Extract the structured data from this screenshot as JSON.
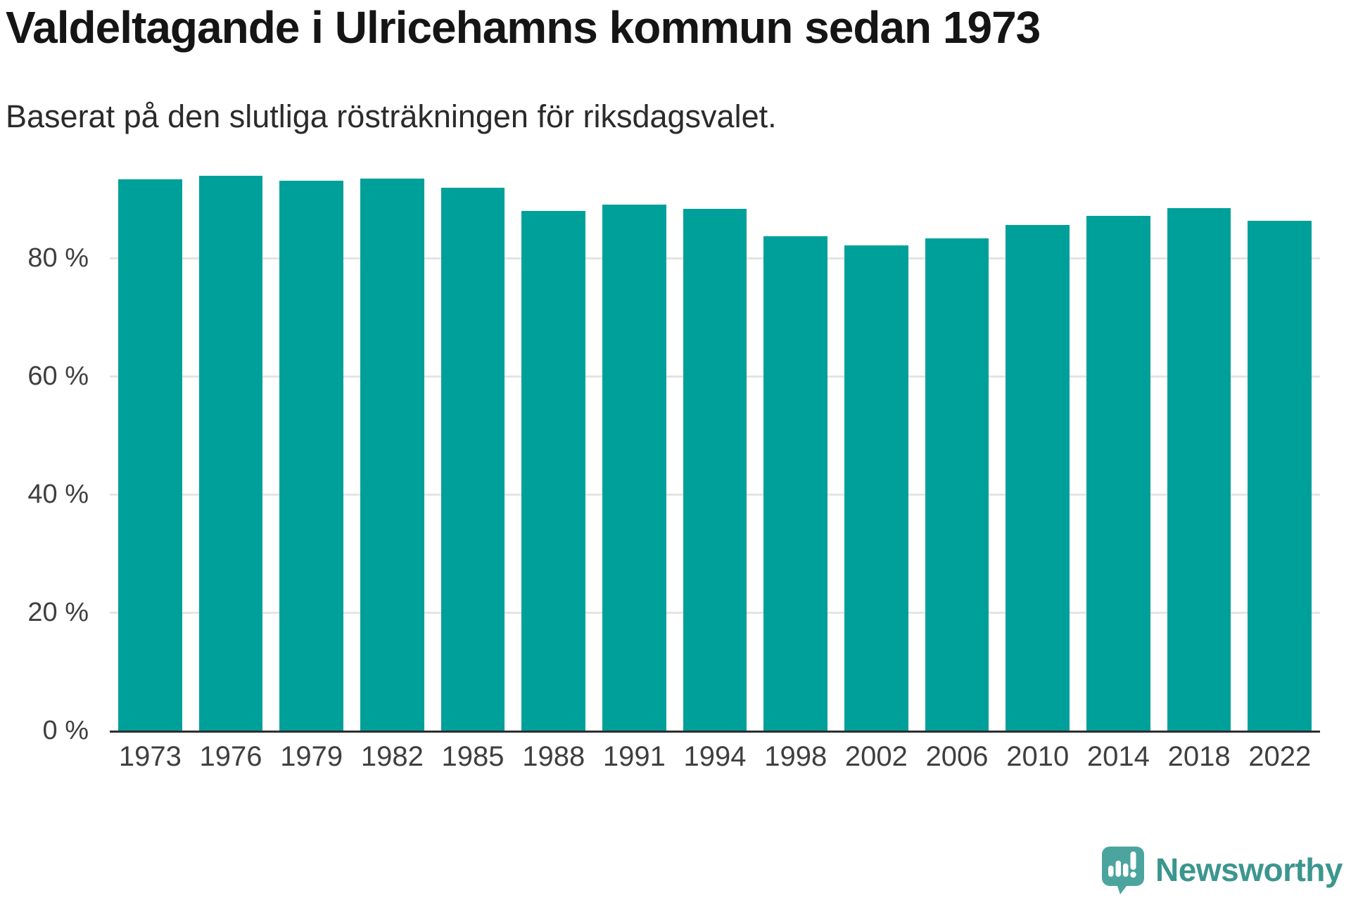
{
  "title": "Valdeltagande i Ulricehamns kommun sedan 1973",
  "subtitle": "Baserat på den slutliga rösträkningen för riksdagsvalet.",
  "branding": {
    "logo_text": "Newsworthy"
  },
  "colors": {
    "background": "#ffffff",
    "bar": "#00a09a",
    "title_text": "#151515",
    "subtitle_text": "#2b2b2b",
    "axis_text": "#3f3f3f",
    "gridline": "#e4e4e4",
    "axis_line": "#2e2e2e",
    "logo_mark": "#4ba59e",
    "logo_text": "#3b968f"
  },
  "chart_data": {
    "type": "bar",
    "title": "Valdeltagande i Ulricehamns kommun sedan 1973",
    "subtitle": "Baserat på den slutliga rösträkningen för riksdagsvalet.",
    "categories": [
      "1973",
      "1976",
      "1979",
      "1982",
      "1985",
      "1988",
      "1991",
      "1994",
      "1998",
      "2002",
      "2006",
      "2010",
      "2014",
      "2018",
      "2022"
    ],
    "values": [
      93.3,
      93.9,
      93.1,
      93.4,
      91.9,
      88.0,
      89.1,
      88.3,
      83.7,
      82.2,
      83.3,
      85.6,
      87.2,
      88.4,
      86.3
    ],
    "unit": "%",
    "xlabel": "",
    "ylabel": "",
    "ylim": [
      0,
      100
    ],
    "yticks": [
      {
        "value": 0,
        "label": "0 %"
      },
      {
        "value": 20,
        "label": "20 %"
      },
      {
        "value": 40,
        "label": "40 %"
      },
      {
        "value": 60,
        "label": "60 %"
      },
      {
        "value": 80,
        "label": "80 %"
      }
    ],
    "grid": true,
    "legend_position": "none",
    "bar_color": "#00a09a"
  }
}
